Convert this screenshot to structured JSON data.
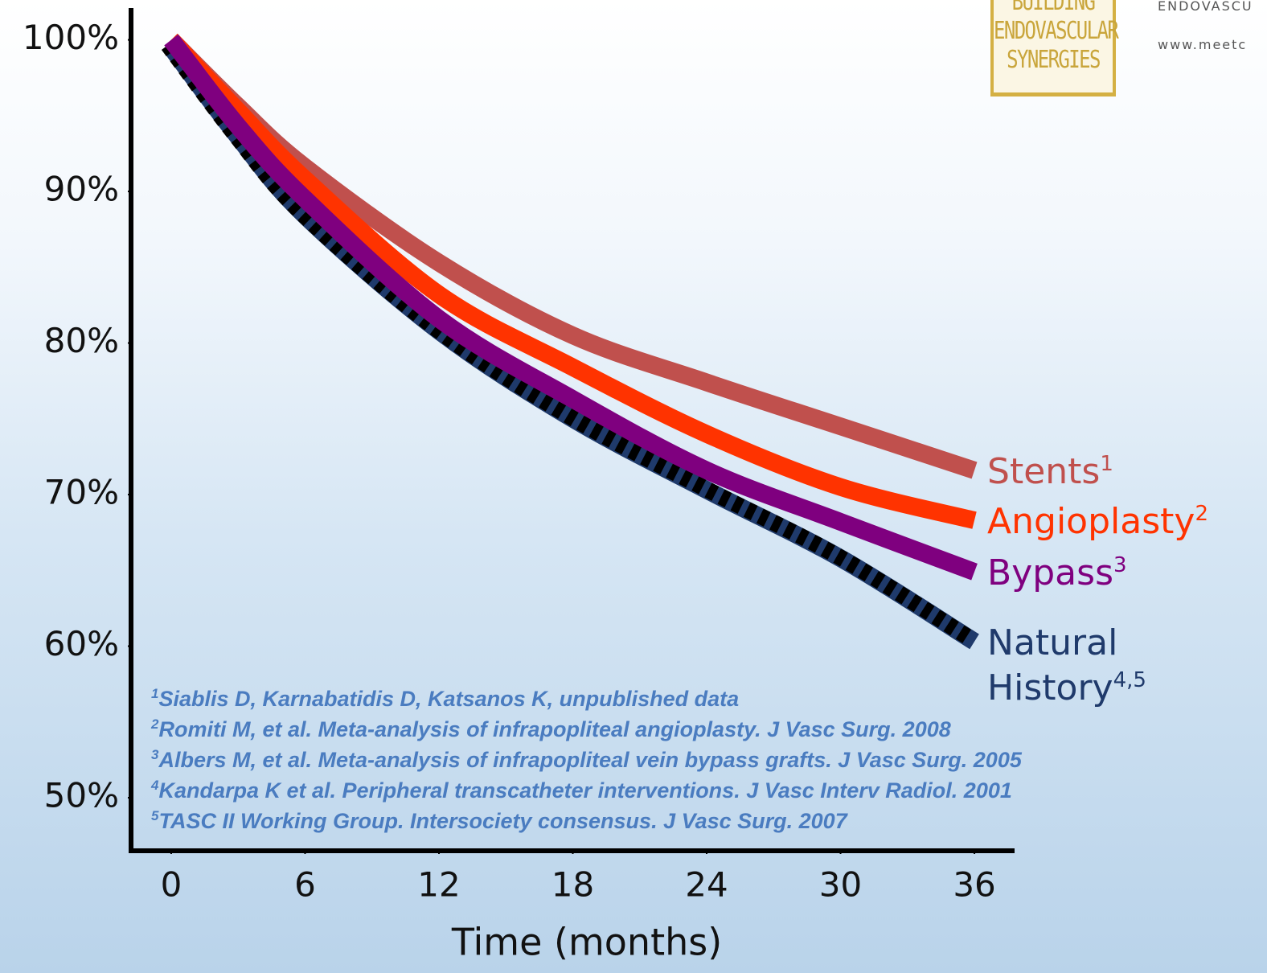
{
  "chart_data": {
    "type": "line",
    "x_label": "Time (months)",
    "x": [
      0,
      3,
      6,
      12,
      18,
      24,
      30,
      36
    ],
    "xlim": [
      -1.8,
      37.8
    ],
    "xticks": [
      0,
      6,
      12,
      18,
      24,
      30,
      36
    ],
    "ylim": [
      46.5,
      102.1
    ],
    "yticks": [
      {
        "value": 50,
        "label": "50%"
      },
      {
        "value": 60,
        "label": "60%"
      },
      {
        "value": 70,
        "label": "70%"
      },
      {
        "value": 80,
        "label": "80%"
      },
      {
        "value": 90,
        "label": "90%"
      },
      {
        "value": 100,
        "label": "100%"
      }
    ],
    "series": [
      {
        "name": "Stents",
        "ref": "1",
        "color": "#c0504d",
        "values": [
          100,
          95.6,
          91.6,
          85.3,
          80.5,
          77.4,
          74.5,
          71.6
        ]
      },
      {
        "name": "Angioplasty",
        "ref": "2",
        "color": "#ff3300",
        "values": [
          100,
          95.3,
          90.8,
          83.2,
          78.4,
          74.0,
          70.5,
          68.3
        ]
      },
      {
        "name": "Bypass",
        "ref": "3",
        "color": "#7f007f",
        "values": [
          100,
          94.3,
          89.5,
          81.6,
          76.3,
          71.6,
          68.2,
          64.9
        ]
      },
      {
        "name": "Natural History",
        "ref": "4,5",
        "color": "#1f3a6b",
        "dashed": true,
        "values": [
          99.5,
          93.6,
          88.4,
          80.8,
          75.0,
          70.3,
          65.8,
          60.3
        ]
      }
    ],
    "references": [
      {
        "ref": "1",
        "text": "Siablis D, Karnabatidis D, Katsanos K, unpublished data"
      },
      {
        "ref": "2",
        "text": "Romiti M, et al. Meta-analysis of infrapopliteal angioplasty. J Vasc Surg. 2008"
      },
      {
        "ref": "3",
        "text": "Albers M, et al. Meta-analysis of infrapopliteal vein bypass grafts. J Vasc Surg. 2005"
      },
      {
        "ref": "4",
        "text": "Kandarpa K et al. Peripheral transcatheter interventions. J Vasc Interv Radiol. 2001"
      },
      {
        "ref": "5",
        "text": "TASC II Working Group. Intersociety consensus. J Vasc Surg. 2007"
      }
    ]
  },
  "logo": {
    "lines": [
      "BUILDING",
      "ENDOVASCULAR",
      "SYNERGIES"
    ],
    "side_text": [
      "ENDOVASCU",
      "www.meetc"
    ]
  }
}
